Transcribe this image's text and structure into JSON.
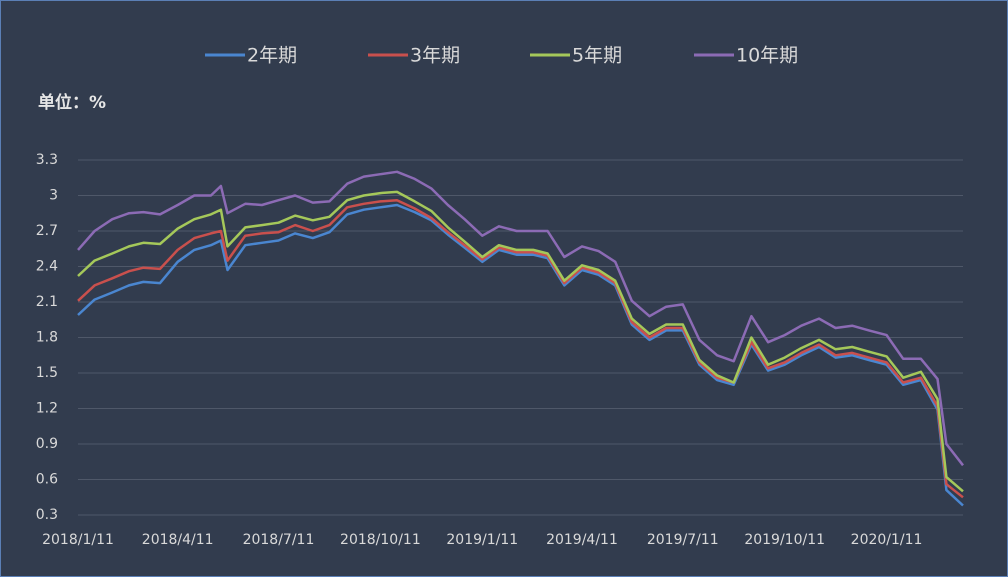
{
  "chart_data": {
    "type": "line",
    "unit_label": "单位：%",
    "x": [
      "2018/1/11",
      "2018/1/26",
      "2018/2/11",
      "2018/2/26",
      "2018/3/11",
      "2018/3/26",
      "2018/4/11",
      "2018/4/26",
      "2018/5/11",
      "2018/5/20",
      "2018/5/26",
      "2018/6/11",
      "2018/6/26",
      "2018/7/11",
      "2018/7/26",
      "2018/8/11",
      "2018/8/26",
      "2018/9/11",
      "2018/9/26",
      "2018/10/11",
      "2018/10/26",
      "2018/11/11",
      "2018/11/26",
      "2018/12/11",
      "2018/12/26",
      "2019/1/11",
      "2019/1/26",
      "2019/2/11",
      "2019/2/26",
      "2019/3/11",
      "2019/3/26",
      "2019/4/11",
      "2019/4/26",
      "2019/5/11",
      "2019/5/26",
      "2019/6/11",
      "2019/6/26",
      "2019/7/11",
      "2019/7/26",
      "2019/8/11",
      "2019/8/26",
      "2019/9/11",
      "2019/9/26",
      "2019/10/11",
      "2019/10/26",
      "2019/11/11",
      "2019/11/26",
      "2019/12/11",
      "2019/12/26",
      "2020/1/11",
      "2020/1/26",
      "2020/2/11",
      "2020/2/26",
      "2020/3/5",
      "2020/3/20"
    ],
    "xlim": [
      "2018/1/11",
      "2020/3/20"
    ],
    "xticks": [
      "2018/1/11",
      "2018/4/11",
      "2018/7/11",
      "2018/10/11",
      "2019/1/11",
      "2019/4/11",
      "2019/7/11",
      "2019/10/11",
      "2020/1/11"
    ],
    "ylim": [
      0.3,
      3.3
    ],
    "yticks": [
      0.3,
      0.6,
      0.9,
      1.2,
      1.5,
      1.8,
      2.1,
      2.4,
      2.7,
      3,
      3.3
    ],
    "grid": true,
    "series": [
      {
        "name": "2年期",
        "color": "#4a86d0",
        "values": [
          1.99,
          2.12,
          2.18,
          2.24,
          2.27,
          2.26,
          2.44,
          2.54,
          2.58,
          2.62,
          2.37,
          2.58,
          2.6,
          2.62,
          2.68,
          2.64,
          2.69,
          2.84,
          2.88,
          2.9,
          2.92,
          2.86,
          2.79,
          2.67,
          2.56,
          2.44,
          2.54,
          2.5,
          2.5,
          2.47,
          2.24,
          2.37,
          2.33,
          2.24,
          1.91,
          1.78,
          1.86,
          1.86,
          1.57,
          1.44,
          1.4,
          1.74,
          1.52,
          1.57,
          1.65,
          1.72,
          1.63,
          1.65,
          1.61,
          1.57,
          1.4,
          1.44,
          1.19,
          0.51,
          0.38
        ]
      },
      {
        "name": "3年期",
        "color": "#c9504d",
        "values": [
          2.11,
          2.24,
          2.3,
          2.36,
          2.39,
          2.38,
          2.54,
          2.64,
          2.68,
          2.7,
          2.45,
          2.66,
          2.68,
          2.69,
          2.75,
          2.7,
          2.75,
          2.9,
          2.93,
          2.95,
          2.96,
          2.89,
          2.81,
          2.69,
          2.58,
          2.46,
          2.56,
          2.52,
          2.52,
          2.49,
          2.26,
          2.39,
          2.35,
          2.26,
          1.93,
          1.8,
          1.88,
          1.88,
          1.59,
          1.46,
          1.42,
          1.76,
          1.54,
          1.59,
          1.67,
          1.74,
          1.65,
          1.67,
          1.63,
          1.59,
          1.42,
          1.46,
          1.22,
          0.56,
          0.45
        ]
      },
      {
        "name": "5年期",
        "color": "#a5c85a",
        "values": [
          2.32,
          2.45,
          2.51,
          2.57,
          2.6,
          2.59,
          2.72,
          2.8,
          2.84,
          2.88,
          2.57,
          2.73,
          2.75,
          2.77,
          2.83,
          2.79,
          2.82,
          2.96,
          3.0,
          3.02,
          3.03,
          2.95,
          2.87,
          2.73,
          2.61,
          2.48,
          2.58,
          2.54,
          2.54,
          2.51,
          2.28,
          2.41,
          2.37,
          2.28,
          1.96,
          1.83,
          1.91,
          1.91,
          1.61,
          1.48,
          1.42,
          1.8,
          1.57,
          1.63,
          1.71,
          1.78,
          1.7,
          1.72,
          1.68,
          1.64,
          1.46,
          1.51,
          1.28,
          0.62,
          0.5
        ]
      },
      {
        "name": "10年期",
        "color": "#8c6bb5",
        "values": [
          2.54,
          2.7,
          2.8,
          2.85,
          2.86,
          2.84,
          2.92,
          3.0,
          3.0,
          3.08,
          2.85,
          2.93,
          2.92,
          2.96,
          3.0,
          2.94,
          2.95,
          3.1,
          3.16,
          3.18,
          3.2,
          3.14,
          3.06,
          2.92,
          2.8,
          2.66,
          2.74,
          2.7,
          2.7,
          2.7,
          2.48,
          2.57,
          2.53,
          2.44,
          2.11,
          1.98,
          2.06,
          2.08,
          1.78,
          1.65,
          1.6,
          1.98,
          1.76,
          1.82,
          1.9,
          1.96,
          1.88,
          1.9,
          1.86,
          1.82,
          1.62,
          1.62,
          1.45,
          0.9,
          0.72
        ]
      }
    ]
  }
}
